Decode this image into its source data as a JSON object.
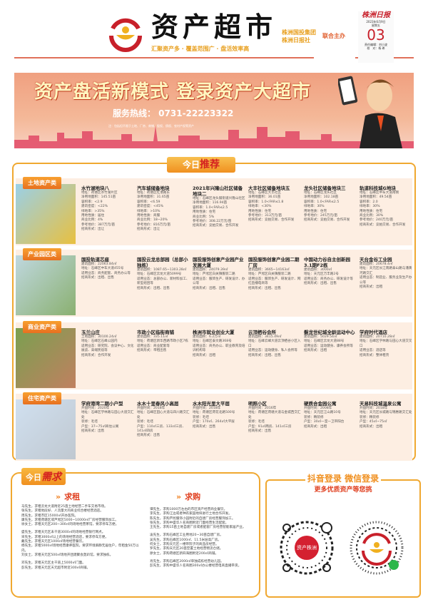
{
  "header": {
    "title": "资产超市",
    "slogan": "汇聚资产多 · 覆盖范围广 · 盘活效率高",
    "organizers": [
      "株洲国投集团",
      "株洲日报社"
    ],
    "cohost": "联合主办",
    "newspaper": "株洲日报",
    "date": "2023年6月9日",
    "weekday": "星期五",
    "page": "03",
    "editor": "责任编辑：刘小波",
    "proof": "校　对：杨 希"
  },
  "colors": {
    "brand_red": "#c8202a",
    "accent_orange": "#f0a830",
    "panel_bg": "#fdeee2"
  },
  "banner": {
    "headline": "资产盘活新模式 登录资产大超市",
    "hotline": "服务热线： 0731-22223322",
    "note": "注：包括但不限于土地、厂房、商铺、股权、债权、农村产权等资产"
  },
  "recommend": {
    "title_prefix": "今日",
    "title_main": "推荐",
    "categories": [
      {
        "tag": "土地资产类",
        "items": [
          {
            "title": "水竹湖地块八",
            "lines": [
              "地址：荷塘区水竹湖片区",
              "净用地面积：145.51亩",
              "容积率：<2.9",
              "建筑密度：<22%",
              "绿地率：>35%",
              "用地性质：居住",
              "商业比例：4%",
              "参考地价：387万元/亩",
              "招商形式：出让"
            ]
          },
          {
            "title": "汽车城储备地块",
            "lines": [
              "地址：荷塘区红港路东",
              "净用地面积：31.65亩",
              "容积率：<6.59",
              "建筑密度：<45%",
              "绿地率：>10%",
              "用地性质：商服",
              "商业比例：18~20%",
              "参考地价：816万元/亩",
              "招商形式：出让"
            ]
          },
          {
            "title": "2021年兴隆山社区储备地块二",
            "lines": [
              "地址：石峰区龙头铺街道兴隆山社区",
              "净用地面积：116.94亩",
              "容积率：1.0<FAR≤2.5",
              "用地性质：住宅",
              "商业比例：5%",
              "参考地价：308.22万元/亩",
              "招商形式：竞拍交易、合作开发"
            ]
          },
          {
            "title": "大丰社区储备地块五",
            "lines": [
              "地址：石峰区大丰社区",
              "净用地面积：36.01亩",
              "容积率：1.0<FAR≤1.8",
              "绿地率：<30%",
              "用地性质：住宅",
              "参考地价：313万元/亩",
              "招商形式：竞拍交易、合作开发"
            ]
          },
          {
            "title": "龙头社区储备地块三",
            "lines": [
              "地址：石峰区龙头社区",
              "净用地面积：102.18亩",
              "容积率：1.0<FAR≤2.5",
              "绿地率：30%",
              "用地性质：住宅",
              "参考地价：245万元/亩",
              "招商形式：竞拍交易、合作开发"
            ]
          },
          {
            "title": "轨道科技城G地块",
            "lines": [
              "地址：石峰区中车大道南侧",
              "净用地面积：49.54亩",
              "容积率：2.0",
              "绿地率：30%",
              "用地性质：住宅",
              "商业比例：30%",
              "参考地价：240万元/亩",
              "招商形式：竞拍交易、合作开发"
            ]
          }
        ]
      },
      {
        "tag": "产业园区类",
        "items": [
          {
            "title": "国投轨道芯座",
            "lines": [
              "建筑面积：22063.84㎡",
              "地址：石峰区中车大道455号",
              "适用业态：商务配套、商务办公等",
              "招商形式：出租、出售"
            ]
          },
          {
            "title": "国投云龙总部园（总部小独栋）",
            "lines": [
              "建筑面积：1087.65~1303.28㎡",
              "地址：石峰区云龙大道5099号",
              "适用业态：总部办公、新材料加工、新型组团等",
              "招商形式：出租、出售"
            ]
          },
          {
            "title": "国投服饰创意产业园产业发展大厦",
            "lines": [
              "建筑面积：24079.39㎡",
              "地址：芦淞区白关镇服装二路",
              "适用业态：服饰生产、研发设计、办公等",
              "招商形式：出租、出售"
            ]
          },
          {
            "title": "国投服饰创意产业园二期厂房",
            "lines": [
              "建筑面积：3665~14163㎡",
              "地址：芦淞区白关镇服装二路",
              "适用业态：服饰生产、研发设计、网红直播电商等",
              "招商形式：出租、出售"
            ]
          },
          {
            "title": "中国动力谷自主创新园3.1期F2栋",
            "lines": [
              "建筑面积：3000㎡",
              "地址：天元区万丰路2号",
              "适用业态：商务办公、研发设计等",
              "招商形式：出租、出售"
            ]
          },
          {
            "title": "天台金谷工业园",
            "lines": [
              "建筑面积：20678.4㎡",
              "地址：天元区长江南路泰山路与潘黄河路交汇",
              "适用业态：制造业、服务业及生产办公等",
              "招商形式：出租"
            ]
          }
        ]
      },
      {
        "tag": "商业资产类",
        "items": [
          {
            "title": "玉兰山庄",
            "lines": [
              "土地面积：30100.24㎡",
              "地址：石峰区石峰公园内",
              "适用业态：研究院、会议中心、文化展览、高端民宿等",
              "招商形式：合作开发"
            ]
          },
          {
            "title": "市政小区临街商铺",
            "lines": [
              "建筑面积：335.11㎡",
              "地址：荷塘区新华西路市政小区7栋",
              "适用业态：商业配套等",
              "招商形式：带租出售"
            ]
          },
          {
            "title": "株洲市就业创业大厦",
            "lines": [
              "建筑面积：6.2万㎡",
              "地址：石峰区泰文路368号",
              "适用业态：商务办公、职业教育及培训机构等",
              "招商形式：出租"
            ]
          },
          {
            "title": "云顶栖谷会所",
            "lines": [
              "建筑面积：3415.49㎡",
              "地址：石峰云峰大道云顶栖谷小区入口",
              "适用业态：运动健身、私人会所等",
              "招商形式：出租、出售"
            ]
          },
          {
            "title": "磐龙世纪城全龄运动中心",
            "lines": [
              "建筑面积：5029.54㎡",
              "地址：石峰区云龙大道88号",
              "适用业态：运动健身、康养会所等",
              "招商形式：出租"
            ]
          },
          {
            "title": "学府时代酒店",
            "lines": [
              "建筑面积：20710.28㎡",
              "地址：石峰区学林路与田心大道交叉口",
              "适用业态：酒店等",
              "招商形式：整体租赁"
            ]
          }
        ]
      },
      {
        "tag": "住宅资产类",
        "items": [
          {
            "title": "学府港湾二期小户型",
            "lines": [
              "开盘时间：2020年",
              "地址：石峰区学林路与田心大道交汇处",
              "装修：毛坯",
              "户型：37~75㎡商住公寓",
              "招商形式：出售"
            ]
          },
          {
            "title": "水木十里春风小高层",
            "lines": [
              "开盘时间：2018年",
              "地址：石峰区田心大道与四川路交汇处",
              "装修：毛坯",
              "户型：110㎡三房、133㎡三房、141㎡四房",
              "招商形式：出售"
            ]
          },
          {
            "title": "水木阳光里大平层",
            "lines": [
              "开盘时间：2018年",
              "地址：荷塘区荷花北路500号",
              "装修：毛坯",
              "户型：170㎡、264㎡大平层",
              "招商形式：出售"
            ]
          },
          {
            "title": "明照小区",
            "lines": [
              "开盘时间：2016年",
              "地址：荷塘区荷塘大道与金城西交汇处",
              "装修：毛坯",
              "户型：91㎡两房、141㎡三房",
              "招商形式：出售"
            ]
          },
          {
            "title": "硬质合金园公寓",
            "lines": [
              "开盘时间：2008年",
              "地址：天元区江山路10号",
              "装修：精装修",
              "户型：30㎡一室一卫带阳台",
              "招商形式：出租"
            ]
          },
          {
            "title": "天易科技城温泉公寓",
            "lines": [
              "开盘时间：2018年",
              "地址：天元区长城路与锦惠路交汇处",
              "装修：精装修",
              "户型：45㎡~75㎡",
              "招商形式：出租"
            ]
          }
        ]
      }
    ]
  },
  "demand": {
    "title_prefix": "今日",
    "title_main": "需求",
    "rent": {
      "label": "求租",
      "groups": [
        [
          "马先生，求租云龙大道附近25亩土地经营二手车交易市场。",
          "张先生，求租地段好、人流量大的商业综合楼经营酒店。",
          "周先生，求租市区15000㎡开办医院。",
          "康先生，求租荷塘区或芦淞区5000~10000㎡厂房经营服饰加工。",
          "徐女士，求租天元区200~300㎡的场地经营茶馆，要求停车方便。"
        ],
        [
          "盛先生，求租天元区未干道3000㎡的场地经营银行网点。",
          "宋先生，求租3000㎡以上的场地经营酒店，要求停车方便。",
          "戴先生，求租天元区1000㎡场地经营餐饮。",
          "杨先生，求租5000㎡场地经营康养医院，要求环境僻静无居住户，年租金50万以内。",
          "刘女士，求租天元区500㎡场地开团建聚会轰趴馆，要求独栋。"
        ],
        [
          "邓先生，求租天元区主干道上5000㎡门面。",
          "彭先生，求租天元区天元超市附近300㎡商铺。"
        ]
      ]
    },
    "buy": {
      "label": "求购",
      "groups": [
        [
          "谭先生，求购1000万左右的市区资产经营商业餐饮。",
          "李先生，求购江边或者种农家园地块进行土地合作开发。",
          "陈先生，求购芦淞服饰小园附近的自建厂房经营服饰加工。",
          "张先生，求购中盛华人名商圈附近门面经营生活配套。",
          "王先生，求购15亩土地自建厂房或者配套厂房经营智能家居产业。"
        ],
        [
          "凌先生，求购石峰区工业用地20~30亩自建厂房。",
          "吴先生，求购石峰区1000㎡、11.5米层高厂房。",
          "何女士，求购天元区一楼带院子的商品房经营。",
          "罗先生，求购天元区20亩空置土地经营物流仓储。",
          "廖女士，求购荷塘区新四海圈附近200㎡商铺。"
        ],
        [
          "肖先生，求购石峰区2000㎡单独成栋经营幼儿园。",
          "彭先生，求购中盛华人名商圈300㎡办公楼经营电商直播带货。"
        ]
      ]
    }
  },
  "qr": {
    "line1": "抖音登录 微信登录",
    "line2": "更多优质资产等您挑",
    "douyin_badge": "资产株洲",
    "icons": [
      "douyin-icon",
      "wechat-miniprogram-icon"
    ]
  }
}
